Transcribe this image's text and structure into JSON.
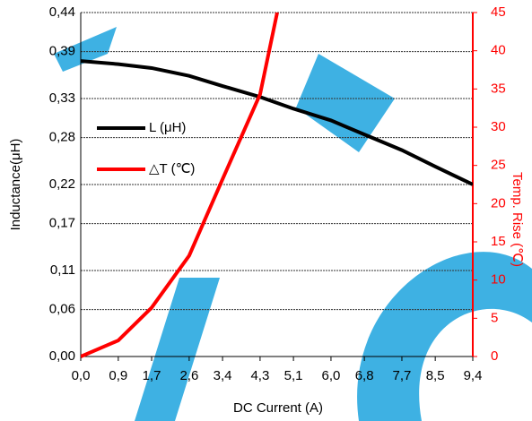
{
  "chart_data": {
    "type": "line",
    "x_label": "DC Current (A)",
    "y_label": "Inductance(μH)",
    "y2_label": "Temp. Rise (℃)",
    "xlim": [
      0,
      9.4
    ],
    "xticks": [
      {
        "value": 0,
        "label": "0,0"
      },
      {
        "value": 0.9,
        "label": "0,9"
      },
      {
        "value": 1.7,
        "label": "1,7"
      },
      {
        "value": 2.6,
        "label": "2,6"
      },
      {
        "value": 3.4,
        "label": "3,4"
      },
      {
        "value": 4.3,
        "label": "4,3"
      },
      {
        "value": 5.1,
        "label": "5,1"
      },
      {
        "value": 6.0,
        "label": "6,0"
      },
      {
        "value": 6.8,
        "label": "6,8"
      },
      {
        "value": 7.7,
        "label": "7,7"
      },
      {
        "value": 8.5,
        "label": "8,5"
      },
      {
        "value": 9.4,
        "label": "9,4"
      }
    ],
    "ylim": [
      0,
      0.44
    ],
    "yticks": [
      {
        "value": 0,
        "label": "0,00"
      },
      {
        "value": 0.06,
        "label": "0,06"
      },
      {
        "value": 0.11,
        "label": "0,11"
      },
      {
        "value": 0.17,
        "label": "0,17"
      },
      {
        "value": 0.22,
        "label": "0,22"
      },
      {
        "value": 0.28,
        "label": "0,28"
      },
      {
        "value": 0.33,
        "label": "0,33"
      },
      {
        "value": 0.39,
        "label": "0,39"
      },
      {
        "value": 0.44,
        "label": "0,44"
      }
    ],
    "y2lim": [
      0,
      45
    ],
    "y2ticks": [
      0,
      5,
      10,
      15,
      20,
      25,
      30,
      35,
      40,
      45
    ],
    "y2_color": "#ff0000",
    "grid": true,
    "legend": "left",
    "series": [
      {
        "name": "L (μH)",
        "color": "#000000",
        "x": [
          0,
          0.9,
          1.7,
          2.6,
          3.4,
          4.3,
          5.1,
          6.0,
          6.8,
          7.7,
          8.5,
          9.4
        ],
        "values": [
          0.378,
          0.374,
          0.369,
          0.359,
          0.346,
          0.332,
          0.317,
          0.302,
          0.284,
          0.264,
          0.243,
          0.22
        ]
      },
      {
        "name": "△T (℃)",
        "color": "#ff0000",
        "axis": "y2",
        "x": [
          0,
          0.9,
          1.7,
          2.6,
          3.4,
          4.3,
          4.71
        ],
        "values": [
          0,
          2.1,
          6.4,
          13.2,
          23.2,
          34.3,
          45
        ]
      }
    ]
  }
}
